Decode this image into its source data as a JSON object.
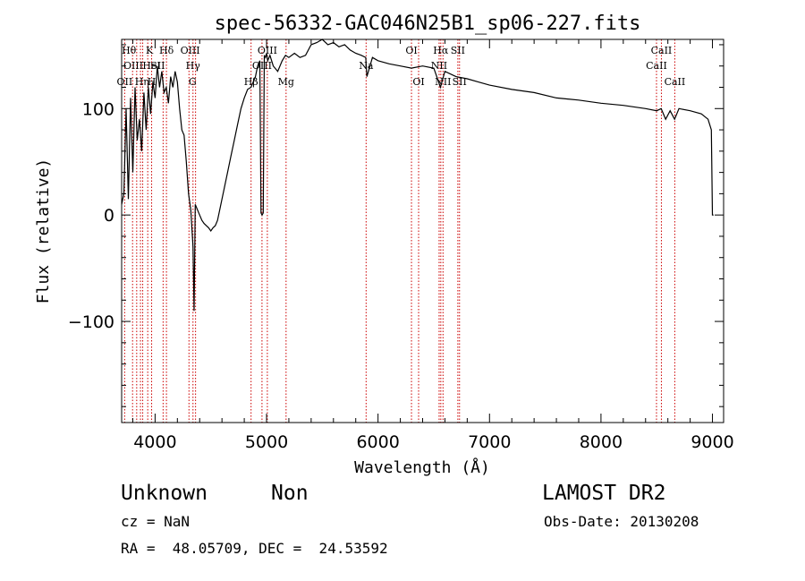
{
  "chart_data": {
    "type": "line",
    "title": "spec-56332-GAC046N25B1_sp06-227.fits",
    "xlabel": "Wavelength (Å)",
    "ylabel": "Flux (relative)",
    "xlim": [
      3700,
      9100
    ],
    "ylim": [
      -195,
      165
    ],
    "x_ticks": [
      4000,
      5000,
      6000,
      7000,
      8000,
      9000
    ],
    "y_ticks": [
      -100,
      0,
      100
    ],
    "grid": false,
    "legend": "none",
    "line_color": "#000000",
    "marker_color": "#cc0000",
    "spectrum": {
      "x": [
        3700,
        3720,
        3740,
        3760,
        3780,
        3800,
        3820,
        3840,
        3860,
        3880,
        3900,
        3920,
        3940,
        3960,
        3980,
        4000,
        4020,
        4040,
        4060,
        4080,
        4100,
        4120,
        4140,
        4160,
        4180,
        4200,
        4220,
        4240,
        4260,
        4280,
        4300,
        4320,
        4340,
        4350,
        4360,
        4380,
        4400,
        4420,
        4440,
        4460,
        4480,
        4500,
        4520,
        4540,
        4560,
        4580,
        4600,
        4620,
        4650,
        4680,
        4710,
        4740,
        4770,
        4800,
        4830,
        4860,
        4880,
        4900,
        4920,
        4940,
        4950,
        4960,
        4970,
        4980,
        4990,
        5000,
        5010,
        5030,
        5060,
        5100,
        5140,
        5170,
        5200,
        5250,
        5300,
        5350,
        5400,
        5450,
        5500,
        5550,
        5600,
        5650,
        5700,
        5750,
        5800,
        5850,
        5890,
        5900,
        5950,
        6000,
        6100,
        6200,
        6300,
        6400,
        6500,
        6560,
        6600,
        6700,
        6800,
        6900,
        7000,
        7200,
        7400,
        7600,
        7800,
        8000,
        8200,
        8400,
        8500,
        8540,
        8580,
        8620,
        8660,
        8700,
        8800,
        8900,
        8960,
        8990,
        9000,
        9010
      ],
      "y": [
        10,
        20,
        100,
        15,
        110,
        40,
        120,
        70,
        90,
        60,
        115,
        80,
        120,
        95,
        125,
        110,
        140,
        120,
        135,
        115,
        120,
        105,
        130,
        120,
        135,
        125,
        100,
        80,
        75,
        50,
        20,
        5,
        -30,
        -90,
        10,
        5,
        0,
        -5,
        -8,
        -10,
        -12,
        -15,
        -12,
        -10,
        -5,
        5,
        15,
        25,
        40,
        55,
        70,
        85,
        100,
        110,
        118,
        120,
        125,
        130,
        140,
        145,
        2,
        0,
        2,
        150,
        148,
        152,
        145,
        150,
        140,
        135,
        145,
        150,
        148,
        152,
        148,
        150,
        160,
        162,
        165,
        160,
        162,
        158,
        160,
        155,
        152,
        150,
        148,
        130,
        148,
        145,
        142,
        140,
        138,
        140,
        138,
        120,
        135,
        130,
        128,
        125,
        122,
        118,
        115,
        110,
        108,
        105,
        103,
        100,
        98,
        100,
        90,
        98,
        90,
        100,
        98,
        95,
        90,
        80,
        0,
        0
      ]
    },
    "lines": [
      {
        "name": "OII",
        "x": 3727,
        "row": 3,
        "dx": 0
      },
      {
        "name": "Hθ",
        "x": 3798,
        "row": 1,
        "dx": -4
      },
      {
        "name": "OIII",
        "x": 3869,
        "row": 2,
        "dx": -8
      },
      {
        "name": "Hη",
        "x": 3835,
        "row": 3,
        "dx": 6
      },
      {
        "name": "K",
        "x": 3934,
        "row": 1,
        "dx": 2
      },
      {
        "name": "H",
        "x": 3969,
        "row": 3,
        "dx": 0
      },
      {
        "name": "HeI",
        "x": 3889,
        "row": 2,
        "dx": 10
      },
      {
        "name": "SII",
        "x": 4072,
        "row": 2,
        "dx": -6
      },
      {
        "name": "Hδ",
        "x": 4102,
        "row": 1,
        "dx": 0
      },
      {
        "name": "OIII",
        "x": 4363,
        "row": 1,
        "dx": -6
      },
      {
        "name": "Hγ",
        "x": 4340,
        "row": 2,
        "dx": 0
      },
      {
        "name": "G",
        "x": 4304,
        "row": 3,
        "dx": 4
      },
      {
        "name": "Hβ",
        "x": 4861,
        "row": 3,
        "dx": 0
      },
      {
        "name": "OIII",
        "x": 5007,
        "row": 1,
        "dx": 0
      },
      {
        "name": "OIII",
        "x": 4959,
        "row": 2,
        "dx": 0
      },
      {
        "name": "Mg",
        "x": 5175,
        "row": 3,
        "dx": 0
      },
      {
        "name": "Na",
        "x": 5893,
        "row": 2,
        "dx": 0
      },
      {
        "name": "OI",
        "x": 6300,
        "row": 1,
        "dx": 0
      },
      {
        "name": "OI",
        "x": 6364,
        "row": 3,
        "dx": 0
      },
      {
        "name": "Hα",
        "x": 6563,
        "row": 1,
        "dx": 0
      },
      {
        "name": "NII",
        "x": 6548,
        "row": 2,
        "dx": 0
      },
      {
        "name": "NII",
        "x": 6583,
        "row": 3,
        "dx": 0
      },
      {
        "name": "SII",
        "x": 6716,
        "row": 1,
        "dx": 0
      },
      {
        "name": "SII",
        "x": 6731,
        "row": 3,
        "dx": 0
      },
      {
        "name": "CaII",
        "x": 8542,
        "row": 1,
        "dx": 0
      },
      {
        "name": "CaII",
        "x": 8498,
        "row": 2,
        "dx": 0
      },
      {
        "name": "CaII",
        "x": 8662,
        "row": 3,
        "dx": 0
      }
    ]
  },
  "info": {
    "object_class": "Unknown",
    "subclass": "Non",
    "survey": "LAMOST DR2",
    "redshift": "cz = NaN",
    "obs_date": "Obs-Date: 20130208",
    "coords": "RA =  48.05709, DEC =  24.53592"
  }
}
